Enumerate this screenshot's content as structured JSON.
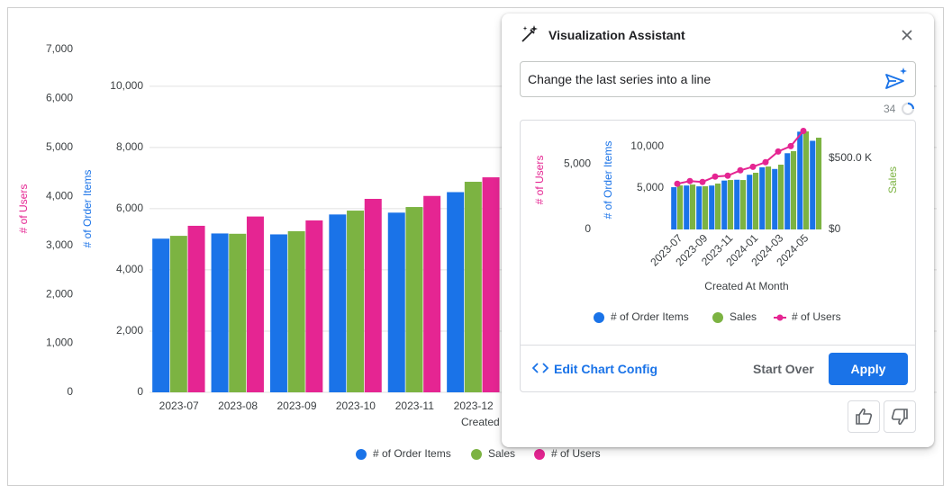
{
  "chart_data": [
    {
      "type": "bar",
      "categories": [
        "2023-07",
        "2023-08",
        "2023-09",
        "2023-10",
        "2023-11",
        "2023-12"
      ],
      "x_label": "Created",
      "series": [
        {
          "name": "# of Order Items",
          "color": "#1a73e8",
          "values": [
            5020,
            5190,
            5160,
            5810,
            5870,
            6540
          ]
        },
        {
          "name": "Sales",
          "color": "#7cb342",
          "axis": "y3",
          "values": [
            304000,
            308000,
            313000,
            353000,
            360000,
            409000
          ]
        },
        {
          "name": "# of Users",
          "color": "#e52592",
          "axis": "y2",
          "values": [
            3400,
            3590,
            3510,
            3950,
            4010,
            4390
          ]
        }
      ],
      "y_label": "# of Order Items",
      "ylim": [
        0,
        11200
      ],
      "yticks": [
        0,
        {
          "value": 2000,
          "label": "2,000"
        },
        {
          "value": 4000,
          "label": "4,000"
        },
        {
          "value": 6000,
          "label": "6,000"
        },
        {
          "value": 8000,
          "label": "8,000"
        },
        {
          "value": 10000,
          "label": "10,000"
        }
      ],
      "y2_label": "# of Users",
      "y2lim": [
        0,
        7000
      ],
      "y2ticks": [
        0,
        {
          "value": 1000,
          "label": "1,000"
        },
        {
          "value": 2000,
          "label": "2,000"
        },
        {
          "value": 3000,
          "label": "3,000"
        },
        {
          "value": 4000,
          "label": "4,000"
        },
        {
          "value": 5000,
          "label": "5,000"
        },
        {
          "value": 6000,
          "label": "6,000"
        },
        {
          "value": 7000,
          "label": "7,000"
        }
      ],
      "y3lim": [
        0,
        666000
      ],
      "grid": true,
      "legend": "bottom"
    },
    {
      "type": "bar",
      "categories": [
        "2023-07",
        null,
        "2023-09",
        null,
        "2023-11",
        null,
        "2024-01",
        null,
        "2024-03",
        null,
        "2024-05",
        null
      ],
      "x_label": "Created At Month",
      "series": [
        {
          "name": "# of Order Items",
          "color": "#1a73e8",
          "values": [
            5100,
            5300,
            5200,
            5300,
            5900,
            6000,
            6600,
            7500,
            7300,
            9200,
            11800,
            10700
          ]
        },
        {
          "name": "Sales",
          "color": "#7cb342",
          "axis": "y3",
          "values": [
            310000,
            316000,
            304000,
            323000,
            348000,
            348000,
            399000,
            443000,
            456000,
            551000,
            690000,
            646000
          ]
        },
        {
          "name": "# of Users",
          "color": "#e52592",
          "axis": "y2",
          "type": "line",
          "values": [
            3490,
            3700,
            3630,
            4040,
            4110,
            4520,
            4790,
            5140,
            5960,
            6370,
            7530,
            null
          ]
        }
      ],
      "y_label": "# of Order Items",
      "ylim": [
        0,
        12000
      ],
      "yticks": [
        {
          "value": 5000,
          "label": "5,000"
        },
        {
          "value": 10000,
          "label": "10,000"
        }
      ],
      "y2_label": "# of Users",
      "y2lim": [
        0,
        7600
      ],
      "y2ticks": [
        0,
        {
          "value": 5000,
          "label": "5,000"
        }
      ],
      "y3_label": "Sales",
      "y3lim": [
        0,
        700000
      ],
      "y3ticks": [
        {
          "value": 0,
          "label": "$0"
        },
        {
          "value": 500000,
          "label": "$500.0 K"
        }
      ],
      "grid": false,
      "legend": "bottom"
    }
  ],
  "assistant": {
    "title": "Visualization Assistant",
    "prompt": "Change the last series into a line",
    "remaining_characters": 34,
    "edit_config": "Edit Chart Config",
    "start_over": "Start Over",
    "apply": "Apply"
  }
}
